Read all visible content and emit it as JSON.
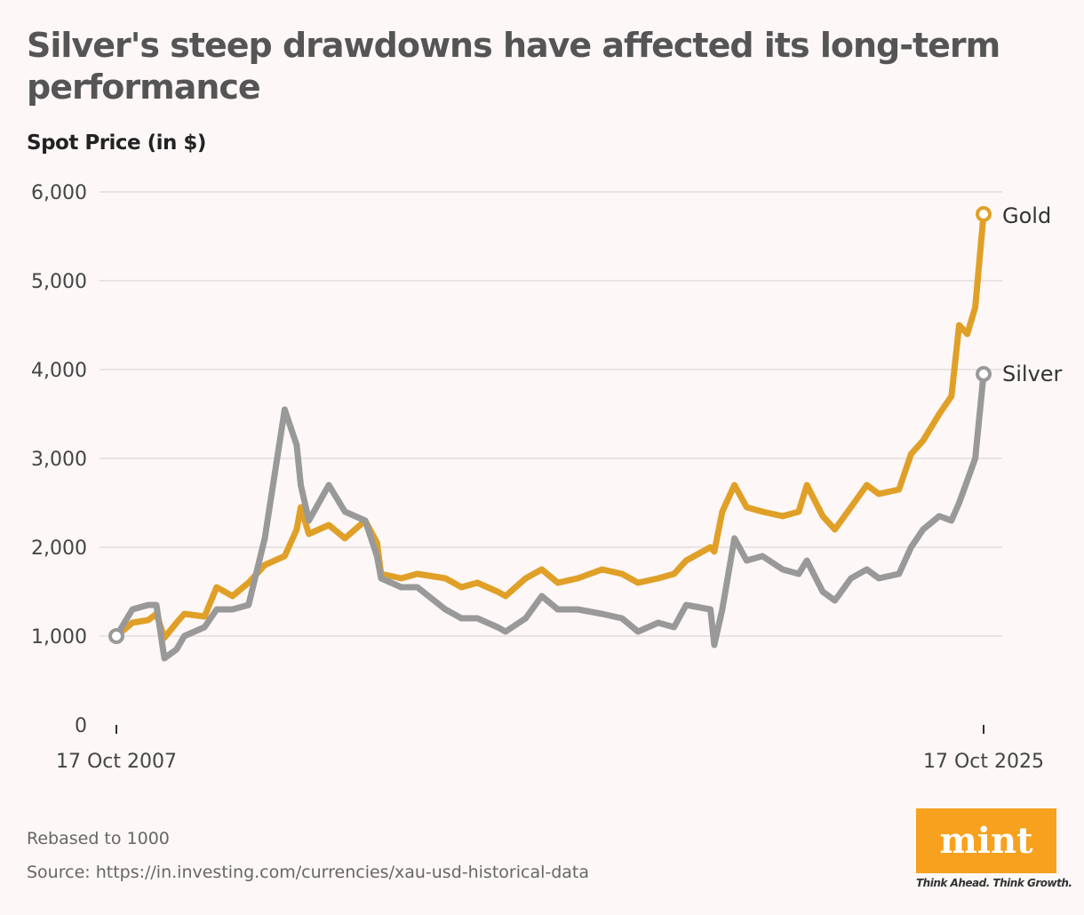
{
  "header": {
    "title": "Silver's steep drawdowns have affected its long-term performance",
    "subtitle": "Spot Price (in $)"
  },
  "footer": {
    "note": "Rebased to 1000",
    "source": "Source: https://in.investing.com/currencies/xau-usd-historical-data"
  },
  "logo": {
    "text": "mint",
    "tagline": "Think Ahead. Think Growth.",
    "color": "#f7a11e"
  },
  "chart_data": {
    "type": "line",
    "title": "Silver's steep drawdowns have affected its long-term performance",
    "ylabel": "Spot Price (in $)",
    "ylim": [
      0,
      6000
    ],
    "yticks": [
      0,
      1000,
      2000,
      3000,
      4000,
      5000,
      6000
    ],
    "ytick_labels": [
      "0",
      "1,000",
      "2,000",
      "3,000",
      "4,000",
      "5,000",
      "6,000"
    ],
    "xlim": [
      "2007-10-17",
      "2025-10-17"
    ],
    "xtick_labels": [
      "17 Oct 2007",
      "17 Oct 2025"
    ],
    "grid": true,
    "legend": "end-of-line labels",
    "x": [
      "2007-10-17",
      "2008-02",
      "2008-06",
      "2008-08",
      "2008-10",
      "2009-01",
      "2009-03",
      "2009-08",
      "2009-11",
      "2010-03",
      "2010-07",
      "2010-11",
      "2011-04",
      "2011-07",
      "2011-08",
      "2011-10",
      "2012-03",
      "2012-07",
      "2012-12",
      "2013-03",
      "2013-04",
      "2013-09",
      "2014-01",
      "2014-08",
      "2014-12",
      "2015-04",
      "2015-09",
      "2015-11",
      "2016-04",
      "2016-08",
      "2016-12",
      "2017-05",
      "2017-11",
      "2018-04",
      "2018-08",
      "2019-01",
      "2019-05",
      "2019-08",
      "2020-02",
      "2020-03",
      "2020-05",
      "2020-08",
      "2020-11",
      "2021-03",
      "2021-08",
      "2021-12",
      "2022-02",
      "2022-06",
      "2022-09",
      "2023-01",
      "2023-05",
      "2023-08",
      "2024-01",
      "2024-04",
      "2024-07",
      "2024-11",
      "2025-02",
      "2025-04",
      "2025-06",
      "2025-08",
      "2025-10-17"
    ],
    "series": [
      {
        "name": "Gold",
        "color": "#e0a028",
        "values": [
          1000,
          1150,
          1180,
          1250,
          980,
          1150,
          1250,
          1220,
          1550,
          1450,
          1600,
          1800,
          1900,
          2200,
          2450,
          2150,
          2250,
          2100,
          2300,
          2050,
          1700,
          1650,
          1700,
          1650,
          1550,
          1600,
          1500,
          1450,
          1650,
          1750,
          1600,
          1650,
          1750,
          1700,
          1600,
          1650,
          1700,
          1850,
          2000,
          1950,
          2400,
          2700,
          2450,
          2400,
          2350,
          2400,
          2700,
          2350,
          2200,
          2450,
          2700,
          2600,
          2650,
          3050,
          3200,
          3500,
          3700,
          4500,
          4400,
          4700,
          5750
        ]
      },
      {
        "name": "Silver",
        "color": "#999999",
        "values": [
          1000,
          1300,
          1350,
          1350,
          750,
          850,
          1000,
          1100,
          1300,
          1300,
          1350,
          2100,
          3550,
          3150,
          2700,
          2300,
          2700,
          2400,
          2300,
          1900,
          1650,
          1550,
          1550,
          1300,
          1200,
          1200,
          1100,
          1050,
          1200,
          1450,
          1300,
          1300,
          1250,
          1200,
          1050,
          1150,
          1100,
          1350,
          1300,
          900,
          1300,
          2100,
          1850,
          1900,
          1750,
          1700,
          1850,
          1500,
          1400,
          1650,
          1750,
          1650,
          1700,
          2000,
          2200,
          2350,
          2300,
          2500,
          2750,
          3000,
          3950
        ]
      }
    ]
  }
}
